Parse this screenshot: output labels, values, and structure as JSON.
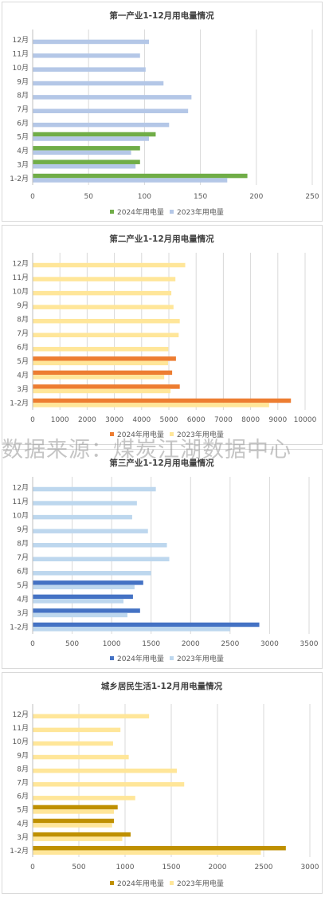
{
  "watermark": "数据来源：煤炭江湖数据中心",
  "chart_data": [
    {
      "type": "bar",
      "orientation": "horizontal",
      "title": "第一产业1-12月用电量情况",
      "categories": [
        "1-2月",
        "3月",
        "4月",
        "5月",
        "6月",
        "7月",
        "8月",
        "9月",
        "10月",
        "11月",
        "12月"
      ],
      "xlim": [
        0,
        250
      ],
      "xticks": [
        0,
        50,
        100,
        150,
        200,
        250
      ],
      "grid": true,
      "legend_position": "bottom",
      "series": [
        {
          "name": "2024年用电量",
          "color": "#70ad47",
          "values": [
            192,
            96,
            96,
            110,
            null,
            null,
            null,
            null,
            null,
            null,
            null
          ]
        },
        {
          "name": "2023年用电量",
          "color": "#b4c7e7",
          "values": [
            174,
            92,
            88,
            104,
            122,
            139,
            142,
            117,
            101,
            96,
            104
          ]
        }
      ]
    },
    {
      "type": "bar",
      "orientation": "horizontal",
      "title": "第二产业1-12月用电量情况",
      "categories": [
        "1-2月",
        "3月",
        "4月",
        "5月",
        "6月",
        "7月",
        "8月",
        "9月",
        "10月",
        "11月",
        "12月"
      ],
      "xlim": [
        0,
        10000
      ],
      "xticks": [
        0,
        1000,
        2000,
        3000,
        4000,
        5000,
        6000,
        7000,
        8000,
        9000,
        10000
      ],
      "grid": true,
      "legend_position": "bottom",
      "series": [
        {
          "name": "2024年用电量",
          "color": "#ed7d31",
          "values": [
            9480,
            5400,
            5120,
            5260,
            null,
            null,
            null,
            null,
            null,
            null,
            null
          ]
        },
        {
          "name": "2023年用电量",
          "color": "#ffe699",
          "values": [
            8680,
            5060,
            4830,
            4970,
            4980,
            5360,
            5400,
            5170,
            5090,
            5240,
            5600
          ]
        }
      ]
    },
    {
      "type": "bar",
      "orientation": "horizontal",
      "title": "第三产业1-12月用电量情况",
      "categories": [
        "1-2月",
        "3月",
        "4月",
        "5月",
        "6月",
        "7月",
        "8月",
        "9月",
        "10月",
        "11月",
        "12月"
      ],
      "xlim": [
        0,
        3500
      ],
      "xticks": [
        0,
        500,
        1000,
        1500,
        2000,
        2500,
        3000,
        3500
      ],
      "grid": true,
      "legend_position": "bottom",
      "series": [
        {
          "name": "2024年用电量",
          "color": "#4472c4",
          "values": [
            2870,
            1360,
            1270,
            1400,
            null,
            null,
            null,
            null,
            null,
            null,
            null
          ]
        },
        {
          "name": "2023年用电量",
          "color": "#bdd7ee",
          "values": [
            2500,
            1200,
            1150,
            1290,
            1500,
            1730,
            1700,
            1460,
            1260,
            1320,
            1560
          ]
        }
      ]
    },
    {
      "type": "bar",
      "orientation": "horizontal",
      "title": "城乡居民生活1-12月用电量情况",
      "categories": [
        "1-2月",
        "3月",
        "4月",
        "5月",
        "6月",
        "7月",
        "8月",
        "9月",
        "10月",
        "11月",
        "12月"
      ],
      "xlim": [
        0,
        3000
      ],
      "xticks": [
        0,
        500,
        1000,
        1500,
        2000,
        2500,
        3000
      ],
      "grid": true,
      "legend_position": "bottom",
      "series": [
        {
          "name": "2024年用电量",
          "color": "#bf9000",
          "values": [
            2740,
            1060,
            880,
            920,
            null,
            null,
            null,
            null,
            null,
            null,
            null
          ]
        },
        {
          "name": "2023年用电量",
          "color": "#ffe699",
          "values": [
            2470,
            970,
            860,
            880,
            1110,
            1640,
            1560,
            1040,
            870,
            950,
            1260
          ]
        }
      ]
    }
  ]
}
